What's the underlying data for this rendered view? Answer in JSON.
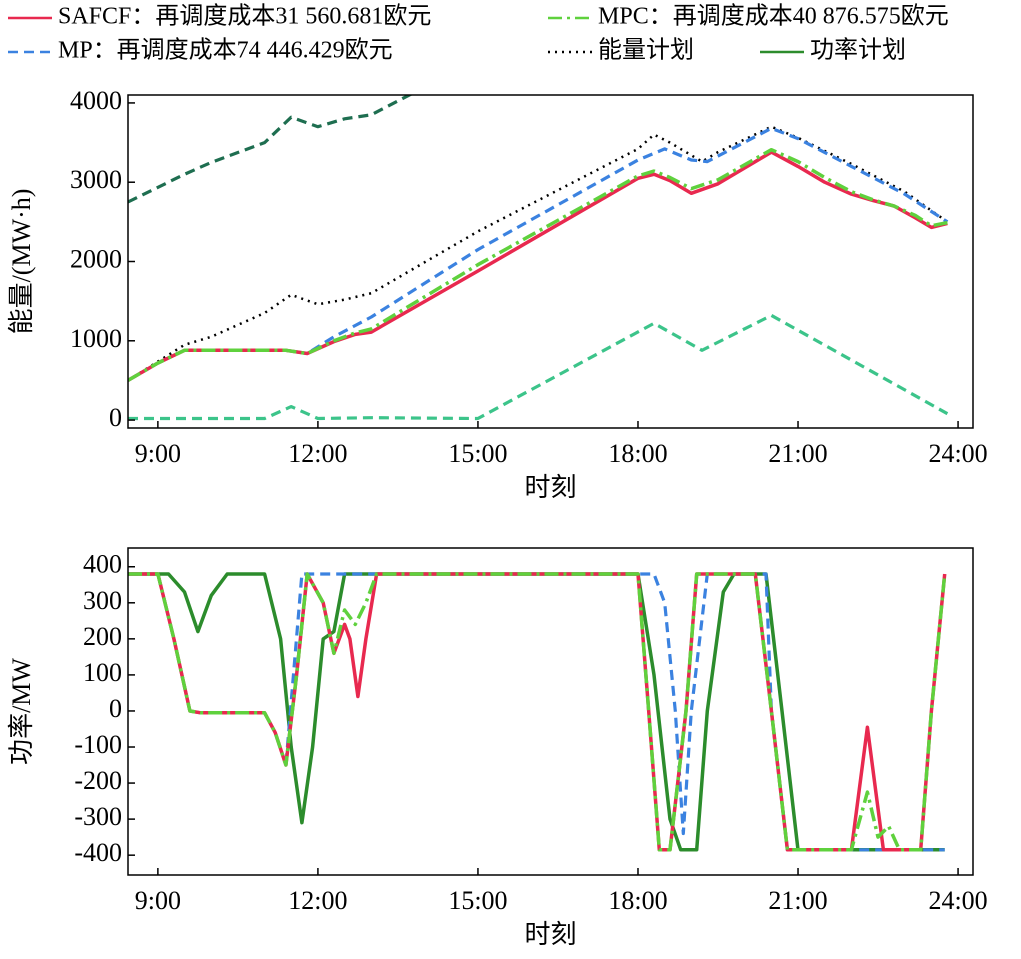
{
  "chart_data": [
    {
      "type": "line",
      "ylabel": "能量/(MW·h)",
      "xlabel": "时刻",
      "xlim": [
        8.44,
        24.28
      ],
      "ylim": [
        -100,
        4100
      ],
      "xticks": [
        {
          "value": 9,
          "label": "9:00"
        },
        {
          "value": 12,
          "label": "12:00"
        },
        {
          "value": 15,
          "label": "15:00"
        },
        {
          "value": 18,
          "label": "18:00"
        },
        {
          "value": 21,
          "label": "21:00"
        },
        {
          "value": 24,
          "label": "24:00"
        }
      ],
      "yticks": [
        0,
        1000,
        2000,
        3000,
        4000
      ],
      "series": [
        {
          "color": "#1e6e50",
          "style": "dashed",
          "x": [
            8.44,
            9.5,
            10,
            11,
            11.5,
            12,
            12.5,
            13,
            13.8
          ],
          "values": [
            2750,
            3100,
            3250,
            3500,
            3820,
            3700,
            3800,
            3850,
            4130
          ]
        },
        {
          "color": "#3cc48a",
          "style": "dashed",
          "x": [
            8.44,
            11,
            11.5,
            12,
            13,
            15,
            18.3,
            19.2,
            20.5,
            23.8
          ],
          "values": [
            20,
            20,
            170,
            20,
            30,
            20,
            1220,
            880,
            1320,
            80
          ]
        },
        {
          "name": "能量计划",
          "color": "#000000",
          "style": "dotted",
          "x": [
            8.44,
            9.5,
            10,
            11,
            11.5,
            12,
            12.5,
            13,
            15,
            18,
            18.3,
            18.6,
            19.2,
            19.5,
            20.5,
            21,
            22,
            23,
            23.8
          ],
          "values": [
            500,
            950,
            1050,
            1350,
            1580,
            1460,
            1520,
            1600,
            2380,
            3420,
            3600,
            3500,
            3260,
            3380,
            3700,
            3560,
            3230,
            2880,
            2500
          ]
        },
        {
          "name": "MP：再调度成本74 446.429欧元",
          "color": "#3b82e0",
          "style": "dashed",
          "x": [
            8.44,
            9,
            9.5,
            10,
            11,
            11.4,
            11.8,
            12.3,
            13,
            15,
            18,
            18.5,
            19,
            19.3,
            20.5,
            21,
            22,
            23,
            23.8
          ],
          "values": [
            500,
            720,
            880,
            880,
            880,
            880,
            840,
            1050,
            1300,
            2150,
            3280,
            3420,
            3280,
            3260,
            3680,
            3550,
            3200,
            2850,
            2500
          ]
        },
        {
          "name": "SAFCF：再调度成本31 560.681欧元",
          "color": "#e8294f",
          "style": "solid",
          "x": [
            8.44,
            9,
            9.5,
            10,
            11,
            11.4,
            11.8,
            12.3,
            12.7,
            13,
            15,
            18,
            18.3,
            18.6,
            19,
            19.5,
            20.5,
            21,
            21.5,
            22,
            22.4,
            22.8,
            23.2,
            23.5,
            23.8
          ],
          "values": [
            500,
            720,
            880,
            880,
            880,
            880,
            840,
            990,
            1080,
            1110,
            1880,
            3050,
            3100,
            3020,
            2860,
            2980,
            3380,
            3200,
            3000,
            2850,
            2770,
            2700,
            2550,
            2430,
            2480
          ]
        },
        {
          "name": "MPC：再调度成本40 876.575欧元",
          "color": "#5fd13d",
          "style": "dashdot",
          "x": [
            8.44,
            9,
            9.5,
            10,
            11,
            11.4,
            11.8,
            12.3,
            12.7,
            13,
            15,
            18,
            18.3,
            18.6,
            19,
            19.5,
            20.5,
            21,
            21.5,
            22,
            22.4,
            22.8,
            23.2,
            23.5,
            23.8
          ],
          "values": [
            500,
            720,
            880,
            880,
            880,
            880,
            840,
            1000,
            1100,
            1150,
            1960,
            3080,
            3140,
            3060,
            2920,
            3030,
            3410,
            3260,
            3060,
            2880,
            2780,
            2700,
            2580,
            2450,
            2490
          ]
        }
      ]
    },
    {
      "type": "line",
      "ylabel": "功率/MW",
      "xlabel": "时刻",
      "xlim": [
        8.44,
        24.28
      ],
      "ylim": [
        -455,
        452
      ],
      "xticks": [
        {
          "value": 9,
          "label": "9:00"
        },
        {
          "value": 12,
          "label": "12:00"
        },
        {
          "value": 15,
          "label": "15:00"
        },
        {
          "value": 18,
          "label": "18:00"
        },
        {
          "value": 21,
          "label": "21:00"
        },
        {
          "value": 24,
          "label": "24:00"
        }
      ],
      "yticks": [
        -400,
        -300,
        -200,
        -100,
        0,
        100,
        200,
        300,
        400
      ],
      "series": [
        {
          "name": "功率计划",
          "color": "#2c8c2c",
          "style": "solid",
          "x": [
            8.44,
            9.2,
            9.5,
            9.75,
            10,
            10.3,
            11,
            11.3,
            11.5,
            11.7,
            11.9,
            12.1,
            12.3,
            12.5,
            18,
            18.3,
            18.6,
            18.8,
            19.1,
            19.3,
            19.6,
            19.8,
            20.4,
            20.7,
            21,
            23.75
          ],
          "values": [
            380,
            380,
            330,
            220,
            320,
            380,
            380,
            200,
            -100,
            -310,
            -100,
            200,
            220,
            380,
            380,
            100,
            -300,
            -385,
            -385,
            0,
            330,
            380,
            380,
            0,
            -385,
            -385
          ]
        },
        {
          "color": "#3b82e0",
          "style": "dashed",
          "x": [
            8.44,
            9,
            9.3,
            9.6,
            9.8,
            11,
            11.2,
            11.4,
            11.7,
            18.3,
            18.5,
            18.7,
            18.85,
            19,
            19.3,
            20.4,
            20.5,
            20.8,
            23.75
          ],
          "values": [
            380,
            380,
            200,
            0,
            -5,
            -5,
            -60,
            -150,
            380,
            380,
            300,
            0,
            -340,
            0,
            380,
            380,
            0,
            -385,
            -385
          ]
        },
        {
          "color": "#e8294f",
          "style": "solid",
          "x": [
            8.44,
            9,
            9.3,
            9.6,
            9.8,
            11,
            11.2,
            11.4,
            11.6,
            11.8,
            12.1,
            12.3,
            12.5,
            12.6,
            12.75,
            12.9,
            13.1,
            18,
            18.2,
            18.4,
            18.6,
            18.9,
            19.1,
            20.2,
            20.5,
            20.8,
            22,
            22.3,
            22.6,
            23.3,
            23.5,
            23.75
          ],
          "values": [
            380,
            380,
            200,
            0,
            -5,
            -5,
            -60,
            -150,
            100,
            380,
            300,
            160,
            240,
            200,
            40,
            200,
            380,
            380,
            0,
            -385,
            -385,
            0,
            380,
            380,
            0,
            -385,
            -385,
            -45,
            -385,
            -385,
            0,
            380
          ]
        },
        {
          "color": "#5fd13d",
          "style": "dashdot",
          "x": [
            8.44,
            9,
            9.3,
            9.6,
            9.8,
            11,
            11.2,
            11.4,
            11.6,
            11.8,
            12.1,
            12.3,
            12.5,
            12.7,
            12.9,
            13.1,
            18,
            18.2,
            18.4,
            18.6,
            18.9,
            19.1,
            20.2,
            20.5,
            20.8,
            22,
            22.3,
            22.5,
            22.7,
            22.9,
            23.3,
            23.5,
            23.75
          ],
          "values": [
            380,
            380,
            200,
            0,
            -5,
            -5,
            -60,
            -150,
            100,
            380,
            300,
            160,
            280,
            240,
            300,
            380,
            380,
            0,
            -385,
            -385,
            0,
            380,
            380,
            0,
            -385,
            -385,
            -225,
            -350,
            -320,
            -385,
            -385,
            0,
            380
          ]
        }
      ]
    }
  ]
}
